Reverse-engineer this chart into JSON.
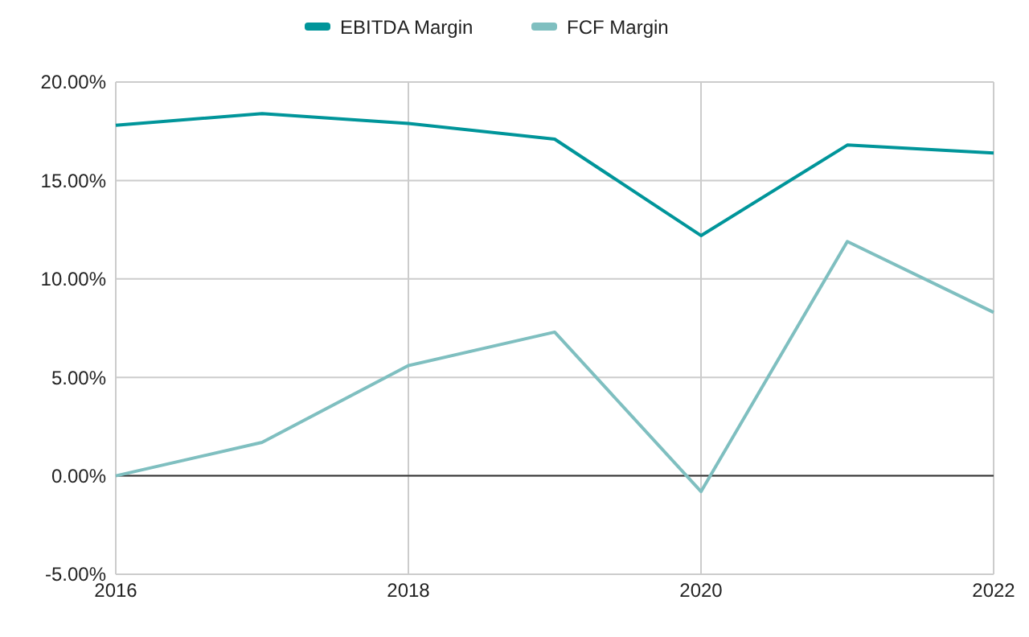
{
  "chart_data": {
    "type": "line",
    "x": [
      2016,
      2017,
      2018,
      2019,
      2020,
      2021,
      2022
    ],
    "series": [
      {
        "name": "EBITDA Margin",
        "color": "#00959a",
        "values": [
          17.8,
          18.4,
          17.9,
          17.1,
          12.2,
          16.8,
          16.4
        ]
      },
      {
        "name": "FCF Margin",
        "color": "#7fbfc0",
        "values": [
          0,
          1.7,
          5.6,
          7.3,
          -0.8,
          11.9,
          8.3
        ]
      }
    ],
    "xlim": [
      2016,
      2022
    ],
    "xticks": [
      2016,
      2018,
      2020,
      2022
    ],
    "ylim": [
      -5,
      20
    ],
    "yticks": [
      {
        "value": -5,
        "label": "-5.00%"
      },
      {
        "value": 0,
        "label": "0.00%"
      },
      {
        "value": 5,
        "label": "5.00%"
      },
      {
        "value": 10,
        "label": "10.00%"
      },
      {
        "value": 15,
        "label": "15.00%"
      },
      {
        "value": 20,
        "label": "20.00%"
      }
    ],
    "grid": true,
    "legend": "top",
    "marker": "none",
    "line_style": "solid"
  }
}
